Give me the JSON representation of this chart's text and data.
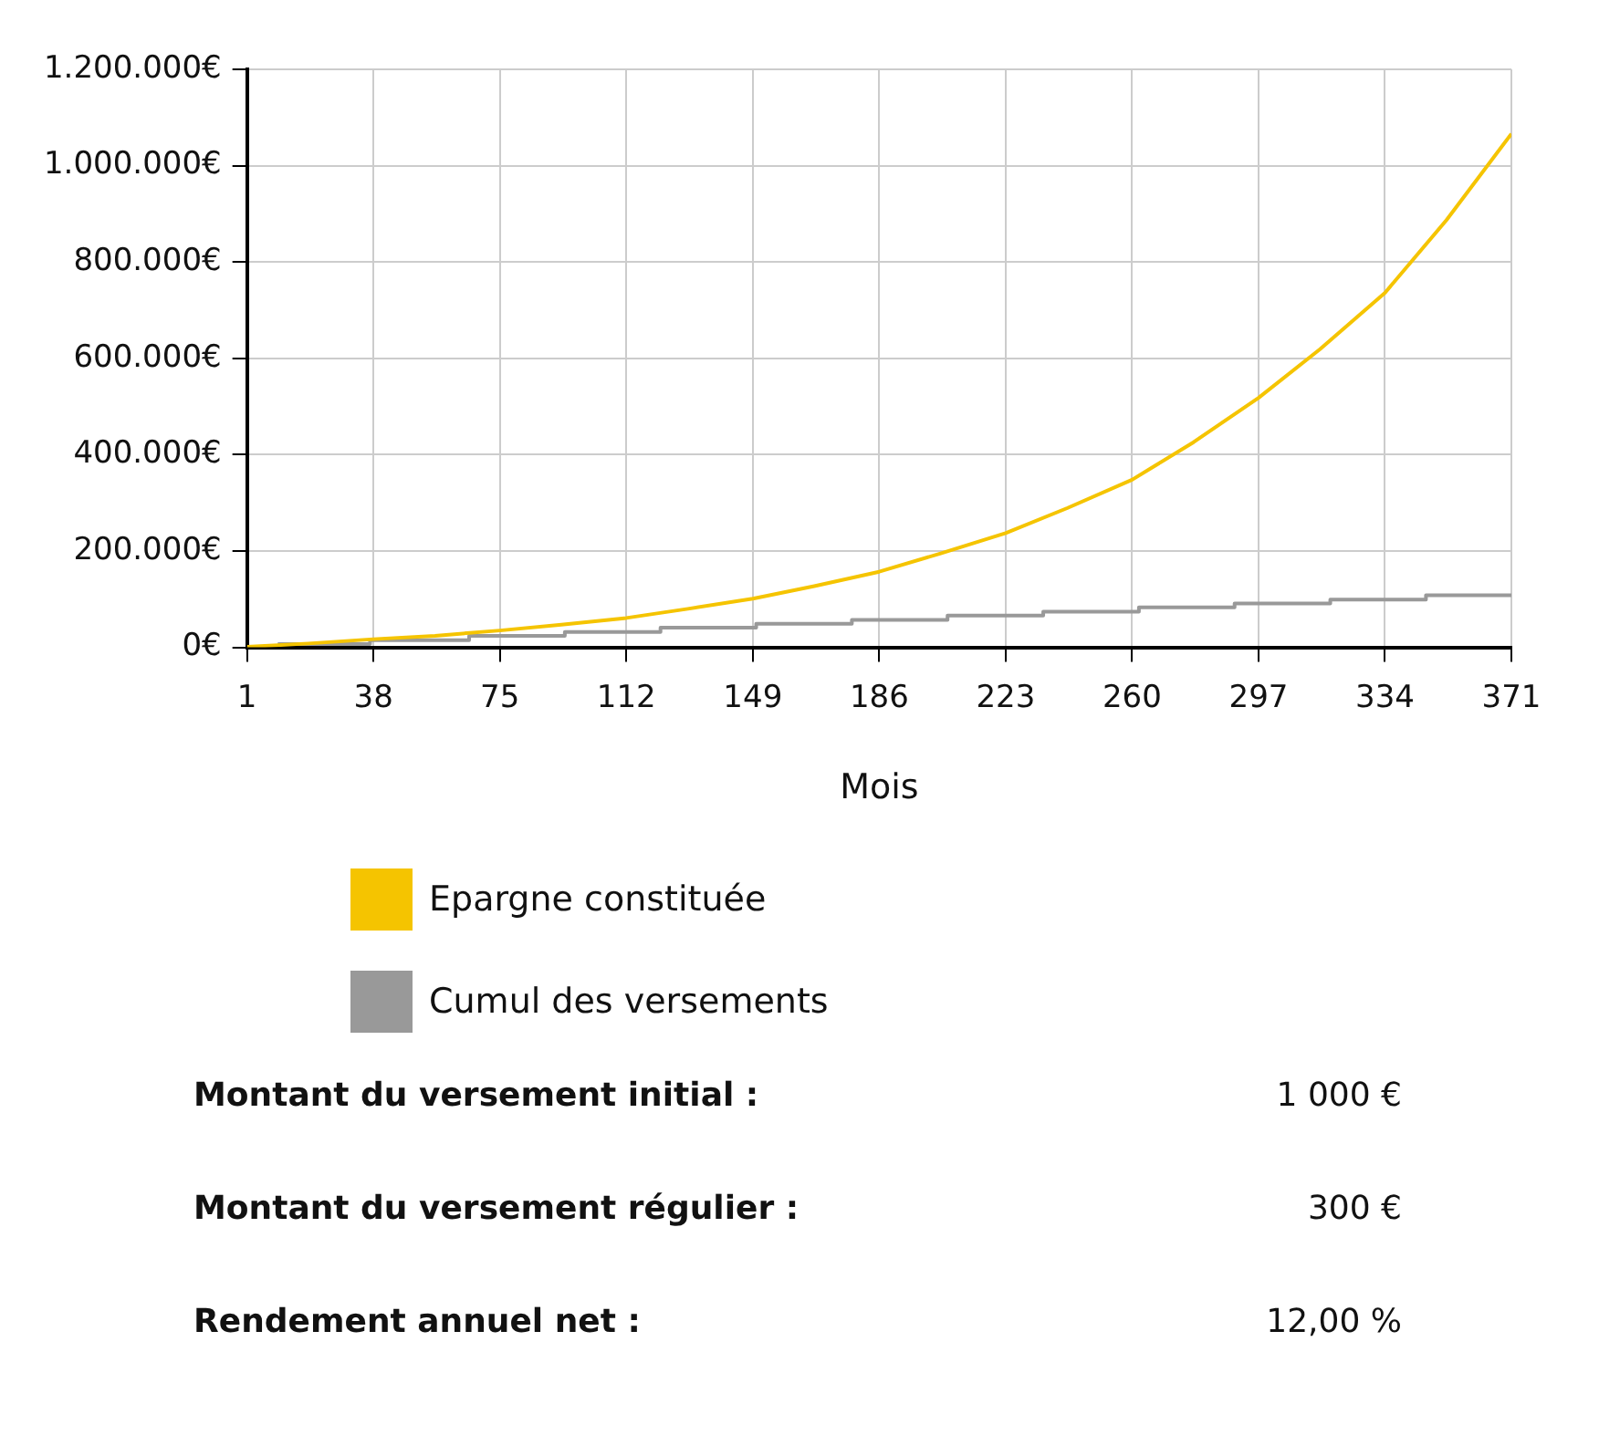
{
  "chart_data": {
    "type": "line",
    "xlabel": "Mois",
    "xlim": [
      1,
      371
    ],
    "xticks": [
      1,
      38,
      75,
      112,
      149,
      186,
      223,
      260,
      297,
      334,
      371
    ],
    "ylim": [
      0,
      1200000
    ],
    "yticks": [
      {
        "value": 0,
        "label": "0€"
      },
      {
        "value": 200000,
        "label": "200.000€"
      },
      {
        "value": 400000,
        "label": "400.000€"
      },
      {
        "value": 600000,
        "label": "600.000€"
      },
      {
        "value": 800000,
        "label": "800.000€"
      },
      {
        "value": 1000000,
        "label": "1.000.000€"
      },
      {
        "value": 1200000,
        "label": "1.200.000€"
      }
    ],
    "grid": true,
    "legend": "bottom",
    "marker": "none",
    "series": [
      {
        "name": "Epargne constituée",
        "color": "#f5c400",
        "x": [
          1,
          19,
          38,
          56,
          75,
          93,
          112,
          130,
          149,
          167,
          186,
          204,
          223,
          241,
          260,
          278,
          297,
          315,
          334,
          352,
          371
        ],
        "values": [
          1000,
          8000,
          17000,
          24000,
          35000,
          47000,
          61000,
          80000,
          101000,
          127000,
          157000,
          195000,
          237000,
          289000,
          348000,
          426000,
          518000,
          619000,
          736000,
          887000,
          1066000
        ]
      },
      {
        "name": "Cumul des versements",
        "type": "step",
        "color": "#999999",
        "x": [
          10,
          37,
          66,
          94,
          122,
          150,
          178,
          206,
          234,
          262,
          290,
          318,
          346,
          371
        ],
        "values": [
          7000,
          15000,
          24000,
          32000,
          41000,
          49000,
          57000,
          66000,
          74000,
          83000,
          91000,
          99000,
          108000,
          108000
        ]
      }
    ],
    "annotations": [
      "Montant du versement initial :",
      "1 000 €",
      "Montant du versement régulier :",
      "300 €",
      "Rendement annuel net :",
      "12,00 %"
    ]
  }
}
